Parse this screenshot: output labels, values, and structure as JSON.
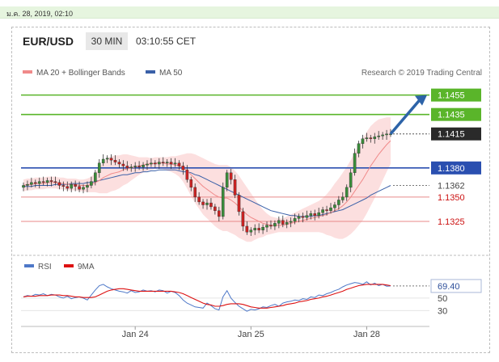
{
  "header": {
    "date_time": "ม.ค. 28, 2019, 02:10",
    "pair": "EUR/USD",
    "period": "30 MIN",
    "clock": "03:10:55 CET"
  },
  "colors": {
    "ma20": "#f08a8a",
    "ma50": "#3a60a8",
    "green_level": "#5ab52a",
    "blue_level": "#2a4fb0",
    "red_level": "#e88a8a",
    "price_box": "#2a2a2a",
    "band_fill": "#fbd9d9",
    "candle_up": "#3a8c3a",
    "candle_down": "#cc2222",
    "arrow": "#2d63a8",
    "rsi": "#4e78c8",
    "rsi_ma": "#dd1111"
  },
  "chart_data": [
    {
      "type": "candlestick",
      "legend": [
        {
          "name": "MA 20 + Bollinger Bands",
          "color": "#f08a8a"
        },
        {
          "name": "MA 50",
          "color": "#3a60a8"
        }
      ],
      "credit": "Research © 2019 Trading Central",
      "ylim": [
        1.1305,
        1.1468
      ],
      "x_ticks": [
        {
          "label": "Jan 24",
          "index": 28
        },
        {
          "label": "Jan 25",
          "index": 57
        },
        {
          "label": "Jan 28",
          "index": 86
        }
      ],
      "levels": [
        {
          "value": 1.1455,
          "label": "1.1455",
          "kind": "resistance"
        },
        {
          "value": 1.1435,
          "label": "1.1435",
          "kind": "resistance"
        },
        {
          "value": 1.1415,
          "label": "1.1415",
          "kind": "current_price"
        },
        {
          "value": 1.138,
          "label": "1.1380",
          "kind": "pivot"
        },
        {
          "value": 1.1362,
          "label": "1.1362",
          "kind": "ma50_value"
        },
        {
          "value": 1.135,
          "label": "1.1350",
          "kind": "support"
        },
        {
          "value": 1.1325,
          "label": "1.1325",
          "kind": "support"
        }
      ],
      "close": [
        1.1362,
        1.1363,
        1.1365,
        1.1364,
        1.1366,
        1.1365,
        1.1367,
        1.1366,
        1.1365,
        1.1362,
        1.1361,
        1.1359,
        1.1363,
        1.1361,
        1.1358,
        1.136,
        1.1362,
        1.1366,
        1.1375,
        1.1385,
        1.1389,
        1.139,
        1.1388,
        1.1386,
        1.1384,
        1.1382,
        1.138,
        1.1381,
        1.1382,
        1.1381,
        1.1383,
        1.1384,
        1.1385,
        1.1384,
        1.1386,
        1.1385,
        1.1386,
        1.1384,
        1.1385,
        1.1382,
        1.1378,
        1.1368,
        1.136,
        1.135,
        1.1345,
        1.1342,
        1.1344,
        1.134,
        1.1336,
        1.133,
        1.136,
        1.1375,
        1.1368,
        1.1352,
        1.1335,
        1.132,
        1.1314,
        1.1316,
        1.1318,
        1.1316,
        1.1319,
        1.1321,
        1.132,
        1.1323,
        1.1326,
        1.1322,
        1.1324,
        1.1325,
        1.1328,
        1.133,
        1.1329,
        1.1331,
        1.1333,
        1.1331,
        1.1334,
        1.1337,
        1.1336,
        1.1339,
        1.1342,
        1.1347,
        1.135,
        1.136,
        1.1375,
        1.1395,
        1.1405,
        1.141,
        1.1411,
        1.141,
        1.1412,
        1.1413,
        1.1414,
        1.1415,
        1.1415
      ],
      "ma20": [
        1.1362,
        1.1363,
        1.1363,
        1.1364,
        1.1364,
        1.1364,
        1.1365,
        1.1365,
        1.1365,
        1.1364,
        1.1364,
        1.1363,
        1.1363,
        1.1363,
        1.1362,
        1.1362,
        1.1362,
        1.1363,
        1.1365,
        1.1367,
        1.137,
        1.1372,
        1.1374,
        1.1375,
        1.1376,
        1.1378,
        1.1379,
        1.138,
        1.1381,
        1.1382,
        1.1383,
        1.1384,
        1.1384,
        1.1385,
        1.1385,
        1.1385,
        1.1384,
        1.1384,
        1.1383,
        1.1382,
        1.138,
        1.1377,
        1.1373,
        1.1369,
        1.1365,
        1.1361,
        1.1358,
        1.1355,
        1.1352,
        1.135,
        1.1349,
        1.1349,
        1.1347,
        1.1344,
        1.134,
        1.1336,
        1.1332,
        1.1329,
        1.1327,
        1.1325,
        1.1323,
        1.1322,
        1.1321,
        1.1321,
        1.1321,
        1.1321,
        1.1322,
        1.1323,
        1.1324,
        1.1325,
        1.1326,
        1.1327,
        1.1328,
        1.1329,
        1.133,
        1.1331,
        1.1332,
        1.1334,
        1.1336,
        1.1338,
        1.1341,
        1.1345,
        1.135,
        1.1356,
        1.1362,
        1.1368,
        1.1375,
        1.1382,
        1.1388,
        1.1394,
        1.1399,
        1.1404,
        1.1408
      ],
      "ma50": [
        1.1361,
        1.1361,
        1.1361,
        1.1362,
        1.1362,
        1.1362,
        1.1362,
        1.1362,
        1.1363,
        1.1363,
        1.1363,
        1.1363,
        1.1364,
        1.1364,
        1.1364,
        1.1364,
        1.1365,
        1.1365,
        1.1366,
        1.1367,
        1.1368,
        1.1369,
        1.137,
        1.1371,
        1.1372,
        1.1373,
        1.1373,
        1.1374,
        1.1375,
        1.1375,
        1.1376,
        1.1376,
        1.1377,
        1.1377,
        1.1378,
        1.1378,
        1.1378,
        1.1378,
        1.1378,
        1.1377,
        1.1376,
        1.1376,
        1.1375,
        1.1373,
        1.1372,
        1.137,
        1.1368,
        1.1366,
        1.1364,
        1.1362,
        1.136,
        1.1358,
        1.1356,
        1.1354,
        1.1352,
        1.135,
        1.1348,
        1.1346,
        1.1344,
        1.1342,
        1.134,
        1.1338,
        1.1336,
        1.1335,
        1.1334,
        1.1333,
        1.1332,
        1.1331,
        1.1331,
        1.133,
        1.133,
        1.133,
        1.133,
        1.1331,
        1.1331,
        1.1332,
        1.1333,
        1.1334,
        1.1335,
        1.1336,
        1.1337,
        1.1339,
        1.1341,
        1.1343,
        1.1345,
        1.1347,
        1.1349,
        1.1352,
        1.1354,
        1.1356,
        1.1358,
        1.136,
        1.1362
      ],
      "band_width": [
        0.0006,
        0.0006,
        0.0006,
        0.0006,
        0.0006,
        0.0006,
        0.0006,
        0.0006,
        0.0006,
        0.0006,
        0.0006,
        0.0006,
        0.0006,
        0.0006,
        0.0006,
        0.0006,
        0.0007,
        0.0008,
        0.001,
        0.0013,
        0.0016,
        0.0018,
        0.0018,
        0.0018,
        0.0017,
        0.0016,
        0.0015,
        0.0013,
        0.0011,
        0.0009,
        0.0008,
        0.0007,
        0.0006,
        0.0006,
        0.0006,
        0.0006,
        0.0007,
        0.0008,
        0.0009,
        0.0011,
        0.0014,
        0.0018,
        0.0022,
        0.0025,
        0.0027,
        0.0029,
        0.003,
        0.0031,
        0.0032,
        0.0033,
        0.0034,
        0.0034,
        0.0034,
        0.0033,
        0.0032,
        0.003,
        0.0028,
        0.0025,
        0.0021,
        0.0017,
        0.0014,
        0.0011,
        0.0009,
        0.0008,
        0.0007,
        0.0007,
        0.0008,
        0.0009,
        0.001,
        0.0011,
        0.0012,
        0.0013,
        0.0014,
        0.0015,
        0.0016,
        0.0018,
        0.0021,
        0.0024,
        0.0028,
        0.0031,
        0.0034,
        0.0036,
        0.0038,
        0.004,
        0.0041,
        0.0042,
        0.0042,
        0.0041,
        0.0039,
        0.0036,
        0.0032,
        0.0028,
        0.0024
      ],
      "forecast_arrow": {
        "from_index": 92,
        "from_value": 1.1415,
        "to_value": 1.1455
      }
    },
    {
      "type": "line",
      "legend": [
        {
          "name": "RSI",
          "color": "#4e78c8"
        },
        {
          "name": "9MA",
          "color": "#dd1111"
        }
      ],
      "ylim": [
        15,
        90
      ],
      "y_ticks": [
        50,
        30
      ],
      "current_label": "69.40",
      "rsi": [
        52,
        54,
        53,
        56,
        55,
        57,
        54,
        56,
        55,
        52,
        50,
        53,
        49,
        51,
        52,
        50,
        47,
        55,
        63,
        70,
        72,
        68,
        65,
        63,
        61,
        60,
        58,
        62,
        59,
        60,
        63,
        61,
        62,
        60,
        63,
        62,
        58,
        61,
        59,
        54,
        47,
        42,
        39,
        36,
        35,
        34,
        42,
        38,
        33,
        31,
        52,
        62,
        50,
        43,
        37,
        33,
        29,
        32,
        31,
        33,
        36,
        35,
        38,
        40,
        37,
        42,
        44,
        45,
        47,
        46,
        49,
        48,
        52,
        51,
        55,
        54,
        57,
        59,
        62,
        64,
        68,
        71,
        73,
        75,
        74,
        72,
        76,
        71,
        74,
        70,
        72,
        69,
        69.4
      ],
      "ma9": [
        52,
        53,
        53,
        53,
        54,
        54,
        54,
        55,
        55,
        55,
        54,
        54,
        53,
        52,
        52,
        51,
        51,
        51,
        52,
        55,
        58,
        61,
        63,
        64,
        65,
        65,
        64,
        63,
        62,
        61,
        61,
        61,
        61,
        61,
        61,
        61,
        61,
        61,
        60,
        59,
        57,
        54,
        51,
        48,
        45,
        42,
        40,
        39,
        37,
        37,
        38,
        40,
        41,
        41,
        41,
        40,
        38,
        36,
        35,
        34,
        34,
        34,
        35,
        36,
        37,
        38,
        40,
        41,
        42,
        44,
        45,
        46,
        48,
        49,
        50,
        52,
        53,
        55,
        57,
        59,
        61,
        64,
        66,
        68,
        70,
        71,
        72,
        72,
        72,
        72,
        72,
        71,
        70
      ]
    }
  ]
}
